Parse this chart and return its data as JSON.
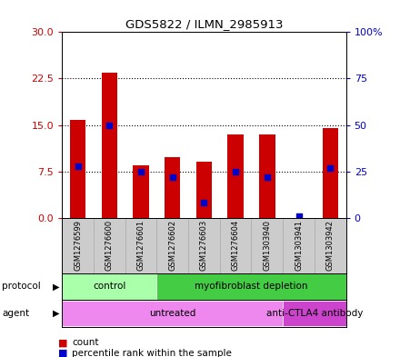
{
  "title": "GDS5822 / ILMN_2985913",
  "samples": [
    "GSM1276599",
    "GSM1276600",
    "GSM1276601",
    "GSM1276602",
    "GSM1276603",
    "GSM1276604",
    "GSM1303940",
    "GSM1303941",
    "GSM1303942"
  ],
  "counts": [
    15.8,
    23.5,
    8.5,
    9.8,
    9.0,
    13.5,
    13.5,
    0.0,
    14.5
  ],
  "percentiles": [
    28,
    50,
    25,
    22,
    8,
    25,
    22,
    1,
    27
  ],
  "left_yticks": [
    0,
    7.5,
    15,
    22.5,
    30
  ],
  "right_ylabels": [
    "0",
    "25",
    "50",
    "75",
    "100%"
  ],
  "bar_color": "#cc0000",
  "percentile_color": "#0000cc",
  "protocol_groups": [
    {
      "label": "control",
      "start": 0,
      "end": 3,
      "color": "#aaffaa"
    },
    {
      "label": "myofibroblast depletion",
      "start": 3,
      "end": 9,
      "color": "#44cc44"
    }
  ],
  "agent_groups": [
    {
      "label": "untreated",
      "start": 0,
      "end": 7,
      "color": "#ee88ee"
    },
    {
      "label": "anti-CTLA4 antibody",
      "start": 7,
      "end": 9,
      "color": "#cc44cc"
    }
  ],
  "protocol_label": "protocol",
  "agent_label": "agent",
  "background_color": "#ffffff",
  "tick_color_left": "#cc0000",
  "tick_color_right": "#0000cc",
  "bar_width": 0.5,
  "label_box_color": "#cccccc",
  "label_box_edge": "#aaaaaa"
}
